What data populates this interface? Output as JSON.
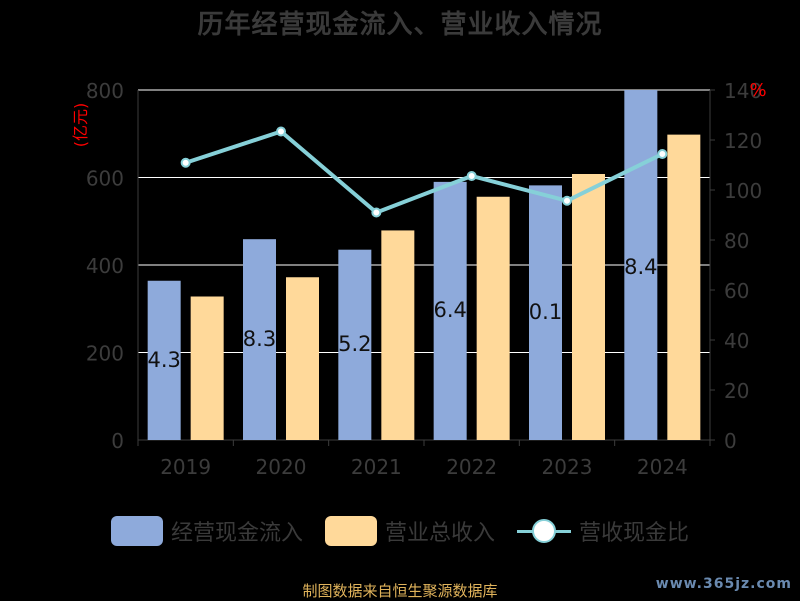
{
  "title": "历年经营现金流入、营业收入情况",
  "footer": "制图数据来自恒生聚源数据库",
  "watermark": "www.365jz.com",
  "chart_data": {
    "type": "bar",
    "categories": [
      "2019",
      "2020",
      "2021",
      "2022",
      "2023",
      "2024"
    ],
    "series": [
      {
        "name": "经营现金流入",
        "kind": "bar",
        "axis": "left",
        "color": "#8eaadb",
        "values": [
          364,
          459,
          435,
          590,
          582,
          800
        ]
      },
      {
        "name": "营业总收入",
        "kind": "bar",
        "axis": "left",
        "color": "#ffd99a",
        "values": [
          328,
          372,
          479,
          556,
          608,
          698
        ]
      },
      {
        "name": "营收现金比",
        "kind": "line",
        "axis": "right",
        "color": "#86d0d8",
        "values": [
          110.9,
          123.4,
          91.0,
          105.6,
          95.7,
          114.4
        ]
      }
    ],
    "data_labels": [
      "4.3",
      "8.3",
      "5.2",
      "6.4",
      "0.1",
      "8.4"
    ],
    "y_left": {
      "label": "(亿元)",
      "ticks": [
        "0",
        "200",
        "400",
        "600",
        "800"
      ],
      "min": 0,
      "max": 800
    },
    "y_right": {
      "label": "%",
      "ticks": [
        "0",
        "20",
        "40",
        "60",
        "80",
        "100",
        "120",
        "140"
      ],
      "min": 0,
      "max": 140
    },
    "grid": true,
    "legend_position": "bottom"
  }
}
